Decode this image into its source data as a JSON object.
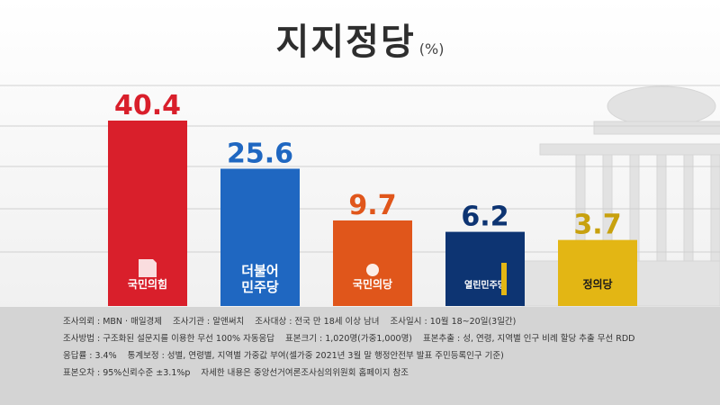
{
  "header": {
    "title": "지지정당",
    "unit": "(%)"
  },
  "chart_data": {
    "type": "bar",
    "title": "지지정당",
    "unit": "(%)",
    "categories": [
      "국민의힘",
      "더불어민주당",
      "국민의당",
      "열린민주당",
      "정의당"
    ],
    "values": [
      40.4,
      25.6,
      9.7,
      6.2,
      3.7
    ],
    "label_lines": [
      [
        "국민의힘"
      ],
      [
        "더불어",
        "민주당"
      ],
      [
        "국민의당"
      ],
      [
        "열린민주당"
      ],
      [
        "정의당"
      ]
    ],
    "colors": [
      "#d91f2b",
      "#1f67c1",
      "#e0561b",
      "#0d3472",
      "#e3b614"
    ],
    "label_colors": [
      "#d91f2b",
      "#1f67c1",
      "#e0561b",
      "#0d3472",
      "#c8a10e"
    ],
    "ylim": [
      0,
      40.4
    ],
    "grid": true,
    "legend": "none"
  },
  "footer": {
    "lines": [
      [
        "조사의뢰 : MBN · 매일경제",
        "조사기관 : 알앤써치",
        "조사대상 : 전국 만 18세 이상 남녀",
        "조사일시 : 10월 18~20일(3일간)"
      ],
      [
        "조사방법 : 구조화된 설문지를 이용한 무선 100% 자동응답",
        "표본크기 : 1,020명(가중1,000명)",
        "표본추출 : 성, 연령, 지역별 인구 비례 할당 추출 무선 RDD"
      ],
      [
        "응답률 : 3.4%",
        "통계보정 : 성별, 연령별, 지역별 가중값 부여(셀가중 2021년 3월 말 행정안전부 발표 주민등록인구 기준)"
      ],
      [
        "표본오차 : 95%신뢰수준 ±3.1%p",
        "자세한 내용은 중앙선거여론조사심의위원회 홈페이지 참조"
      ]
    ]
  }
}
